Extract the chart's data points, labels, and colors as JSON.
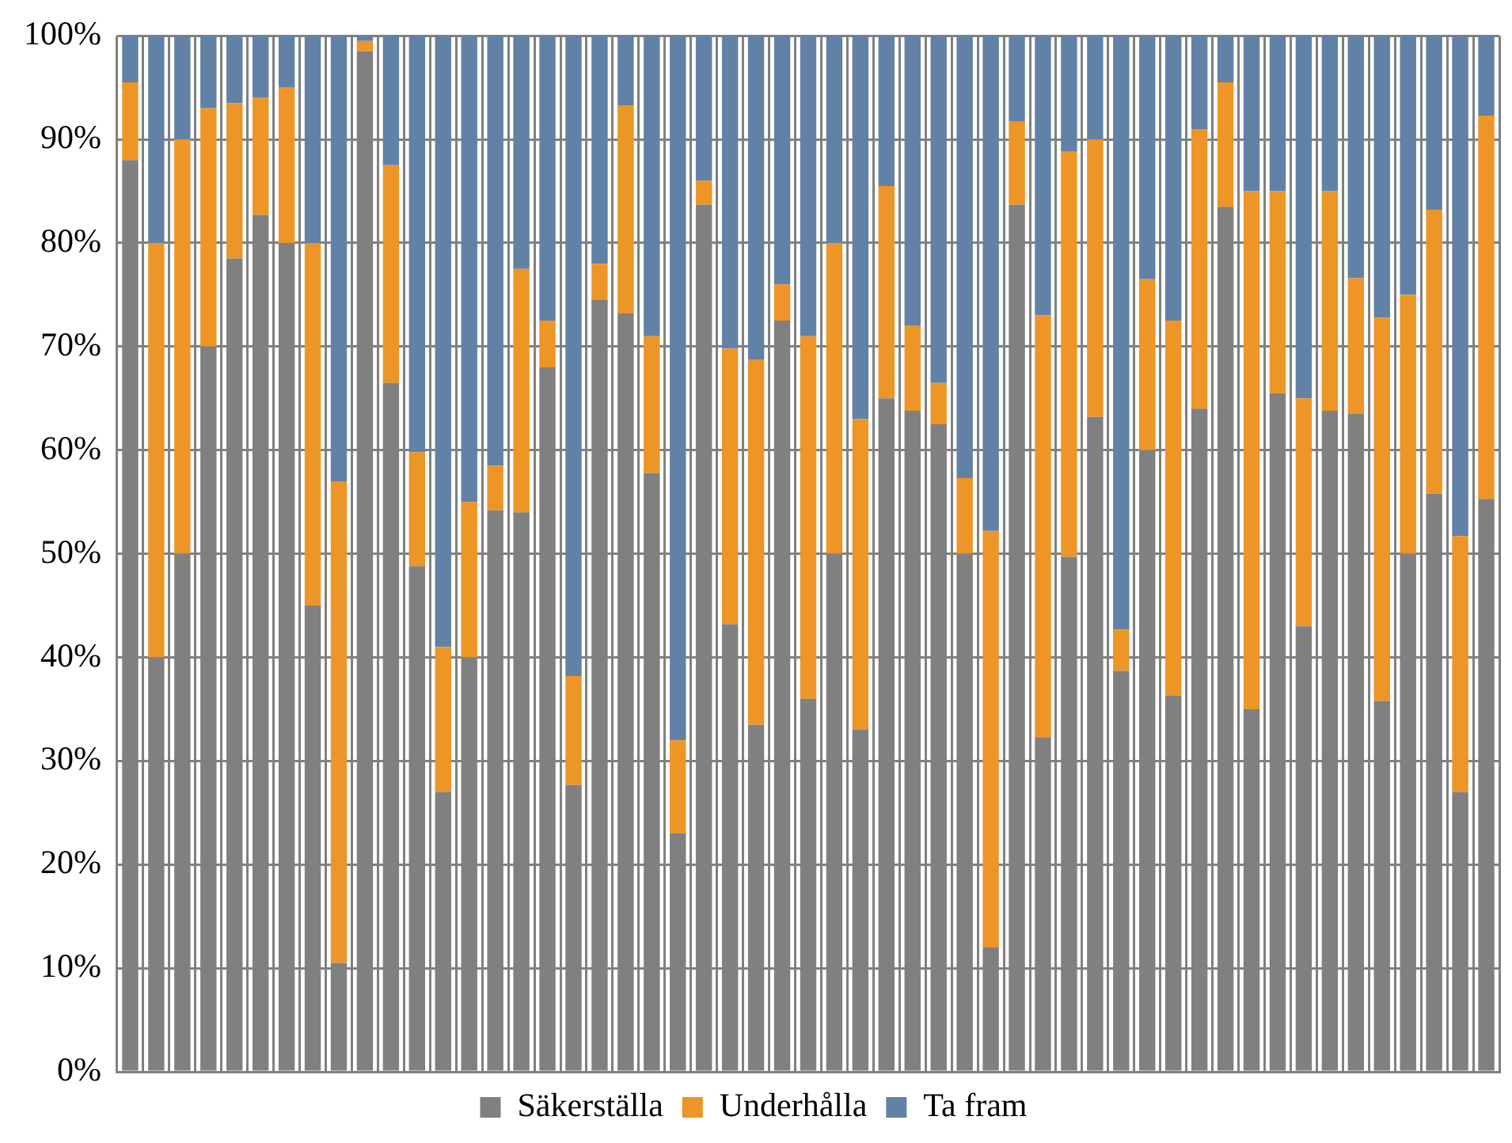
{
  "chart_data": {
    "type": "bar",
    "stacked": true,
    "categories": [
      null,
      null,
      null,
      null,
      null,
      null,
      null,
      null,
      null,
      null,
      null,
      null,
      null,
      null,
      null,
      null,
      null,
      null,
      null,
      null,
      null,
      null,
      null,
      null,
      null,
      null,
      null,
      null,
      null,
      null,
      null,
      null,
      null,
      null,
      null,
      null,
      null,
      null,
      null,
      null,
      null,
      null,
      null,
      null,
      null,
      null,
      null,
      null,
      null,
      null,
      null,
      null,
      null
    ],
    "series": [
      {
        "name": "Säkerställa",
        "color": "#808080",
        "values": [
          88,
          40,
          50,
          70,
          78.5,
          82.7,
          80,
          45,
          10.5,
          98.5,
          66.5,
          48.8,
          27,
          40,
          54.2,
          54,
          68,
          27.7,
          74.5,
          73.2,
          57.8,
          23,
          83.7,
          43.2,
          33.5,
          72.5,
          36,
          50,
          33,
          65,
          63.8,
          62.5,
          50,
          12,
          83.7,
          32.3,
          49.7,
          63.2,
          38.7,
          60,
          36.3,
          64,
          83.5,
          35,
          65.5,
          43,
          63.8,
          63.5,
          35.8,
          50,
          55.8,
          27,
          55.3
        ]
      },
      {
        "name": "Underhålla",
        "color": "#ed9526",
        "values": [
          7.5,
          40,
          40,
          23,
          15,
          11.3,
          15,
          35,
          46.5,
          1,
          21,
          11,
          14,
          15,
          4.3,
          23.5,
          4.5,
          10.5,
          3.5,
          20.1,
          13.2,
          9,
          2.3,
          26.6,
          35.2,
          3.5,
          35,
          30,
          30,
          20.5,
          8.2,
          4,
          7.3,
          40.2,
          8,
          40.7,
          39.1,
          26.8,
          4,
          16.5,
          36.2,
          27,
          12,
          50,
          19.5,
          22,
          21.2,
          13.1,
          37,
          25,
          27.4,
          24.7,
          37
        ]
      },
      {
        "name": "Ta fram",
        "color": "#6182a6",
        "values": [
          4.5,
          20,
          10,
          7,
          6.5,
          6,
          5,
          20,
          43,
          0.5,
          12.5,
          40.2,
          59,
          45,
          41.5,
          22.5,
          27.5,
          61.8,
          22,
          6.7,
          29,
          68,
          14,
          30.2,
          31.3,
          24,
          29,
          20,
          37,
          14.5,
          28,
          33.5,
          42.7,
          47.8,
          8.3,
          27,
          11.2,
          10,
          57.3,
          23.5,
          27.5,
          9,
          4.5,
          15,
          15,
          35,
          15,
          23.4,
          27.2,
          25,
          16.8,
          48.3,
          7.7
        ]
      }
    ],
    "ylim": [
      0,
      100
    ],
    "yticks": [
      {
        "value": 0,
        "label": "0%"
      },
      {
        "value": 10,
        "label": "10%"
      },
      {
        "value": 20,
        "label": "20%"
      },
      {
        "value": 30,
        "label": "30%"
      },
      {
        "value": 40,
        "label": "40%"
      },
      {
        "value": 50,
        "label": "50%"
      },
      {
        "value": 60,
        "label": "60%"
      },
      {
        "value": 70,
        "label": "70%"
      },
      {
        "value": 80,
        "label": "80%"
      },
      {
        "value": 90,
        "label": "90%"
      },
      {
        "value": 100,
        "label": "100%"
      }
    ],
    "grid": true,
    "legend": "bottom"
  }
}
